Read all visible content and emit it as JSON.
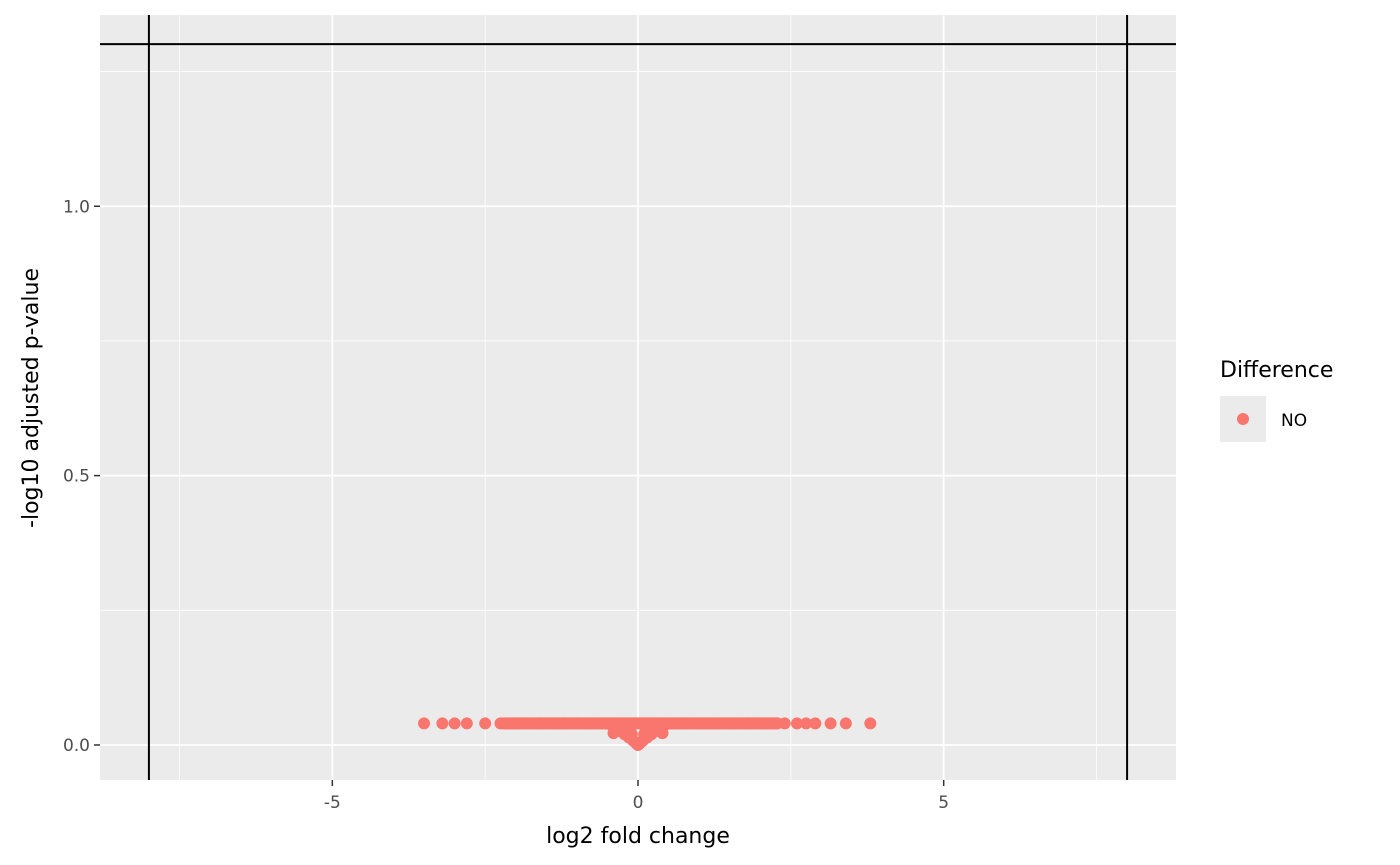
{
  "chart_data": {
    "type": "scatter",
    "title": "",
    "xlabel": "log2 fold change",
    "ylabel": "-log10 adjusted p-value",
    "xlim": [
      -8.8,
      8.8
    ],
    "ylim": [
      -0.065,
      1.355
    ],
    "x_ticks": [
      -5,
      0,
      5
    ],
    "x_tick_labels": [
      "-5",
      "0",
      "5"
    ],
    "y_ticks": [
      0.0,
      0.5,
      1.0
    ],
    "y_tick_labels": [
      "0.0",
      "0.5",
      "1.0"
    ],
    "grid": true,
    "panel_background": "#ebebeb",
    "grid_color": "#ffffff",
    "reference_lines": {
      "vertical_x": [
        -8,
        8
      ],
      "horizontal_y": [
        1.301
      ]
    },
    "legend": {
      "title": "Difference",
      "position": "right",
      "entries": [
        {
          "label": "NO",
          "color": "#f8766d"
        }
      ]
    },
    "series": [
      {
        "name": "NO",
        "color": "#f8766d",
        "band_y": 0.04,
        "band_x": [
          -3.5,
          -3.2,
          -3.0,
          -2.8,
          -2.5,
          -2.25,
          -2.0,
          -1.8,
          -1.6,
          -1.4,
          -1.2,
          -1.0,
          -0.8,
          -0.6,
          -0.4,
          0.4,
          0.6,
          0.8,
          1.0,
          1.2,
          1.4,
          1.6,
          1.8,
          2.0,
          2.25,
          2.4,
          2.6,
          2.75,
          2.9,
          3.15,
          3.4,
          3.8
        ],
        "band_range": [
          -2.2,
          2.3
        ],
        "points": [
          [
            -0.45,
            0.038
          ],
          [
            -0.38,
            0.032
          ],
          [
            -0.3,
            0.026
          ],
          [
            -0.22,
            0.02
          ],
          [
            -0.15,
            0.014
          ],
          [
            -0.08,
            0.008
          ],
          [
            -0.03,
            0.003
          ],
          [
            0.0,
            0.0
          ],
          [
            0.03,
            0.003
          ],
          [
            0.08,
            0.008
          ],
          [
            0.15,
            0.014
          ],
          [
            0.22,
            0.02
          ],
          [
            0.3,
            0.026
          ],
          [
            0.38,
            0.032
          ],
          [
            0.45,
            0.038
          ],
          [
            -0.4,
            0.022
          ],
          [
            -0.2,
            0.03
          ],
          [
            0.2,
            0.03
          ],
          [
            0.4,
            0.022
          ],
          [
            -0.1,
            0.02
          ],
          [
            0.1,
            0.02
          ]
        ]
      }
    ]
  }
}
